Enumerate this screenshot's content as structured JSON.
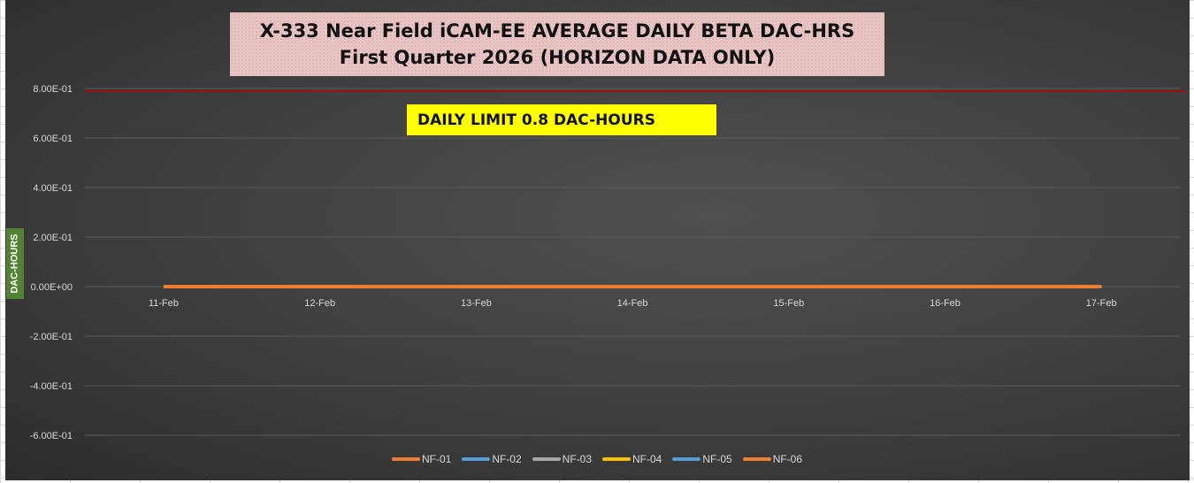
{
  "chart_data": {
    "type": "line",
    "title_line1": "X-333 Near Field iCAM-EE AVERAGE DAILY BETA DAC-HRS",
    "title_line2": "First Quarter 2026 (HORIZON DATA ONLY)",
    "ylabel": "DAC-HOURS",
    "xlabel": "",
    "categories": [
      "11-Feb",
      "12-Feb",
      "13-Feb",
      "14-Feb",
      "15-Feb",
      "16-Feb",
      "17-Feb"
    ],
    "ylim": [
      -0.7,
      0.9
    ],
    "yticks": [
      0.8,
      0.6,
      0.4,
      0.2,
      0,
      -0.2,
      -0.4,
      -0.6
    ],
    "ytick_labels": [
      "8.00E-01",
      "6.00E-01",
      "4.00E-01",
      "2.00E-01",
      "0.00E+00",
      "-2.00E-01",
      "-4.00E-01",
      "-6.00E-01"
    ],
    "grid": true,
    "limit": {
      "value": 0.8,
      "label": "DAILY LIMIT 0.8 DAC-HOURS",
      "color": "#c00000"
    },
    "legend_position": "bottom",
    "series": [
      {
        "name": "NF-01",
        "color": "#ed7d31",
        "values": [
          0,
          0,
          0,
          0,
          0,
          0,
          0
        ]
      },
      {
        "name": "NF-02",
        "color": "#5b9bd5",
        "values": [
          0,
          0,
          0,
          0,
          0,
          0,
          0
        ]
      },
      {
        "name": "NF-03",
        "color": "#a5a5a5",
        "values": [
          0,
          0,
          0,
          0,
          0,
          0,
          0
        ]
      },
      {
        "name": "NF-04",
        "color": "#ffc000",
        "values": [
          0,
          0,
          0,
          0,
          0,
          0,
          0
        ]
      },
      {
        "name": "NF-05",
        "color": "#5b9bd5",
        "values": [
          0,
          0,
          0,
          0,
          0,
          0,
          0
        ]
      },
      {
        "name": "NF-06",
        "color": "#ed7d31",
        "values": [
          0,
          0,
          0,
          0,
          0,
          0,
          0
        ]
      }
    ]
  }
}
